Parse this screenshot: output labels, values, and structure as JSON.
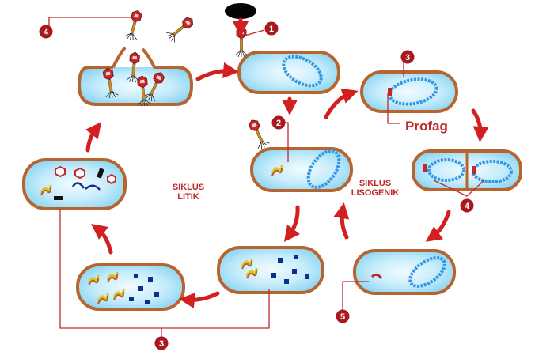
{
  "labels": {
    "cycle_lytic": [
      "SIKLUS",
      "LITIK"
    ],
    "cycle_lysogenic": [
      "SIKLUS",
      "LISOGENIK"
    ],
    "prophage": "Profag"
  },
  "markers": {
    "step1": "1",
    "step2": "2",
    "step3_top": "3",
    "step3_bottom": "3",
    "step4_top_left": "4",
    "step4_right": "4",
    "step5": "5"
  },
  "colors": {
    "cell_wall": "#b8642e",
    "cell_fill": "#a8e2f6",
    "cell_center": "#f2fbff",
    "dna": "#2f97e6",
    "arrow": "#d21f1f",
    "marker": "#a8181c",
    "line": "#c0282e",
    "label": "#c0282e",
    "protein": "#0d2f8c",
    "phage_head": "#c0282e",
    "phage_tail": "#c88a2c"
  }
}
